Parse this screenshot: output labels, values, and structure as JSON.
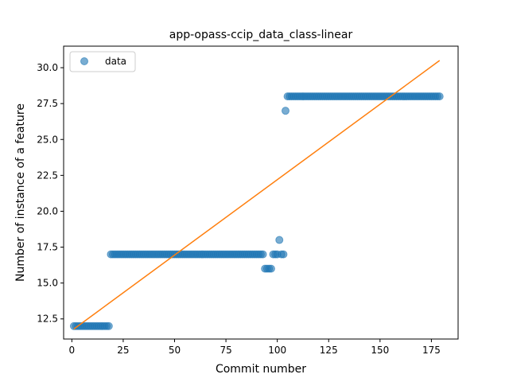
{
  "chart_data": {
    "type": "scatter",
    "title": "app-opass-ccip_data_class-linear",
    "xlabel": "Commit number",
    "ylabel": "Number of instance of a feature",
    "xlim": [
      -4,
      188
    ],
    "ylim": [
      11.1,
      31.5
    ],
    "xticks": [
      0,
      25,
      50,
      75,
      100,
      125,
      150,
      175
    ],
    "yticks": [
      12.5,
      15.0,
      17.5,
      20.0,
      22.5,
      25.0,
      27.5,
      30.0
    ],
    "grid": false,
    "legend": {
      "placement": "top-left",
      "entries": [
        {
          "label": "data",
          "marker": "circle",
          "color": "#1f77b4"
        }
      ]
    },
    "series": [
      {
        "name": "data",
        "kind": "scatter",
        "color": "#1f77b4",
        "segments": [
          {
            "x_from": 1,
            "x_to": 18,
            "y": 12
          },
          {
            "x_from": 19,
            "x_to": 93,
            "y": 17
          },
          {
            "x_from": 94,
            "x_to": 97,
            "y": 16
          },
          {
            "x_from": 98,
            "x_to": 100,
            "y": 17
          },
          {
            "x_from": 105,
            "x_to": 179,
            "y": 28
          }
        ],
        "points": [
          {
            "x": 101,
            "y": 18
          },
          {
            "x": 102,
            "y": 17
          },
          {
            "x": 103,
            "y": 17
          },
          {
            "x": 104,
            "y": 27
          }
        ]
      },
      {
        "name": "",
        "kind": "line",
        "color": "#ff7f0e",
        "x": [
          1,
          179
        ],
        "y": [
          11.8,
          30.5
        ]
      }
    ]
  }
}
